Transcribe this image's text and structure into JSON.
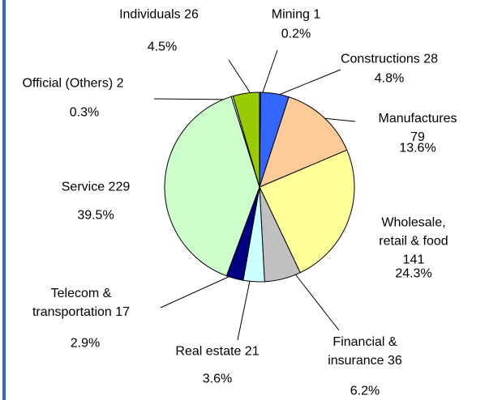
{
  "chart_data": {
    "type": "pie",
    "categories": [
      "Mining 1",
      "Constructions 28",
      "Manufactures 79",
      "Wholesale,\nretail & food 141",
      "Financial &\ninsurance 36",
      "Real estate 21",
      "Telecom &\ntransportation 17",
      "Service 229",
      "Official (Others) 2",
      "Individuals 26"
    ],
    "values": [
      0.2,
      4.8,
      13.6,
      24.3,
      6.2,
      3.6,
      2.9,
      39.5,
      0.3,
      4.5
    ],
    "value_labels": [
      "0.2%",
      "4.8%",
      "13.6%",
      "24.3%",
      "6.2%",
      "3.6%",
      "2.9%",
      "39.5%",
      "0.3%",
      "4.5%"
    ],
    "colors": [
      "#3366ff",
      "#3366ff",
      "#ffcc99",
      "#ffff99",
      "#c0c0c0",
      "#ccffff",
      "#000080",
      "#ccffcc",
      "#ffffff",
      "#99cc00"
    ]
  }
}
